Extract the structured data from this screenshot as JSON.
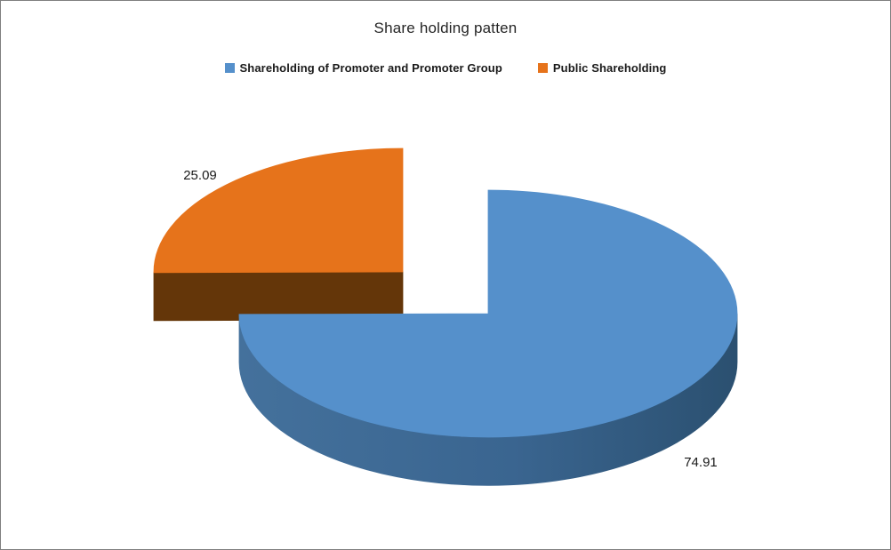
{
  "chart_data": {
    "type": "pie",
    "effect": "3d-exploded-pie",
    "title": "Share holding patten",
    "legend_position": "top",
    "background": "#FFFFFF",
    "border_color": "#7F7F7F",
    "slices": [
      {
        "label": "Shareholding of Promoter and Promoter Group",
        "value": 74.91,
        "data_label": "74.91",
        "color": "#5590CB",
        "side_color": "#2F5574",
        "exploded": false
      },
      {
        "label": "Public Shareholding",
        "value": 25.09,
        "data_label": "25.09",
        "color": "#E6731B",
        "side_color": "#643609",
        "exploded": true
      }
    ]
  }
}
